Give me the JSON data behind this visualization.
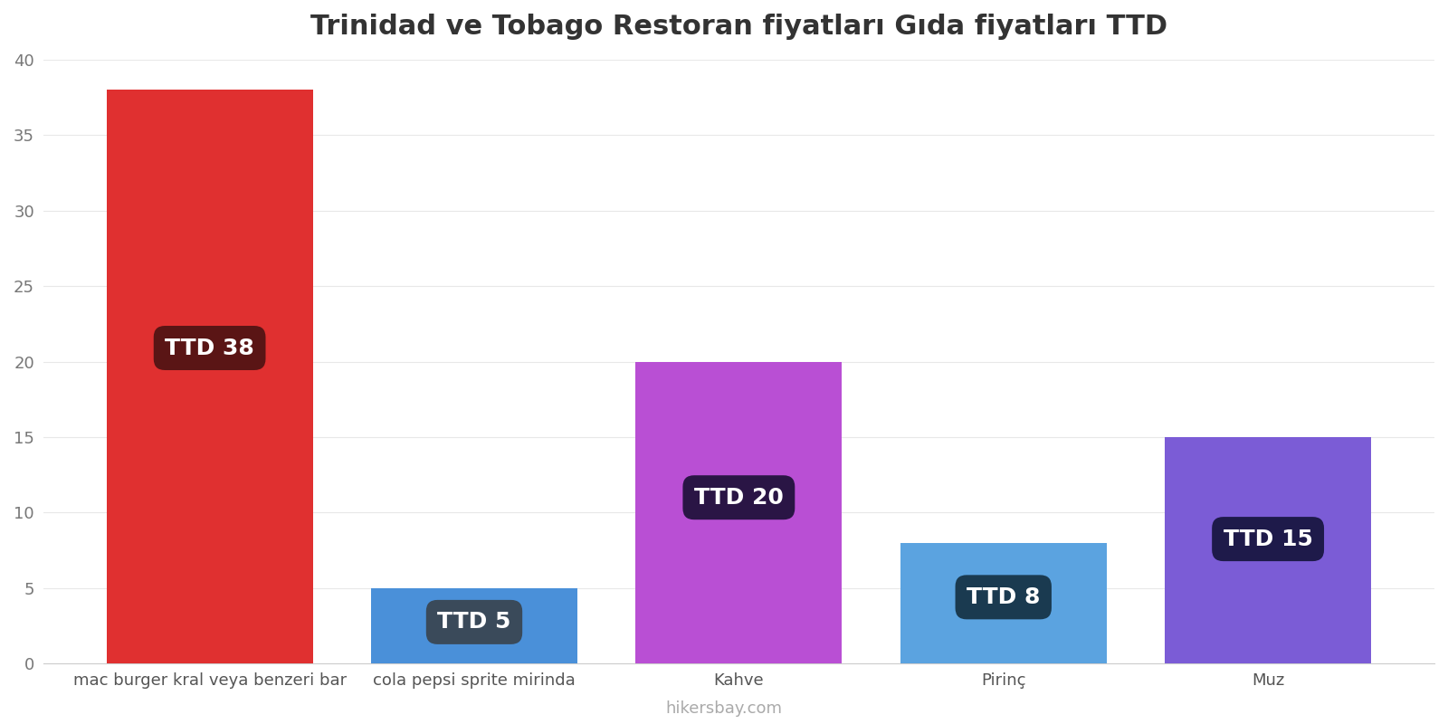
{
  "title": "Trinidad ve Tobago Restoran fiyatları Gıda fiyatları TTD",
  "categories": [
    "mac burger kral veya benzeri bar",
    "cola pepsi sprite mirinda",
    "Kahve",
    "Pirinç",
    "Muz"
  ],
  "values": [
    38,
    5,
    20,
    8,
    15
  ],
  "bar_colors": [
    "#e03030",
    "#4a90d9",
    "#b94fd4",
    "#5ba3e0",
    "#7b5cd6"
  ],
  "label_bg_colors": [
    "#5a1515",
    "#3a4a5a",
    "#2a1545",
    "#1a3a50",
    "#1e1a4a"
  ],
  "labels": [
    "TTD 38",
    "TTD 5",
    "TTD 20",
    "TTD 8",
    "TTD 15"
  ],
  "ylim": [
    0,
    40
  ],
  "yticks": [
    0,
    5,
    10,
    15,
    20,
    25,
    30,
    35,
    40
  ],
  "footer": "hikersbay.com",
  "title_fontsize": 22,
  "tick_fontsize": 13,
  "label_fontsize": 18,
  "footer_fontsize": 13,
  "background_color": "#ffffff",
  "grid_color": "#e8e8e8",
  "bar_width": 0.78
}
